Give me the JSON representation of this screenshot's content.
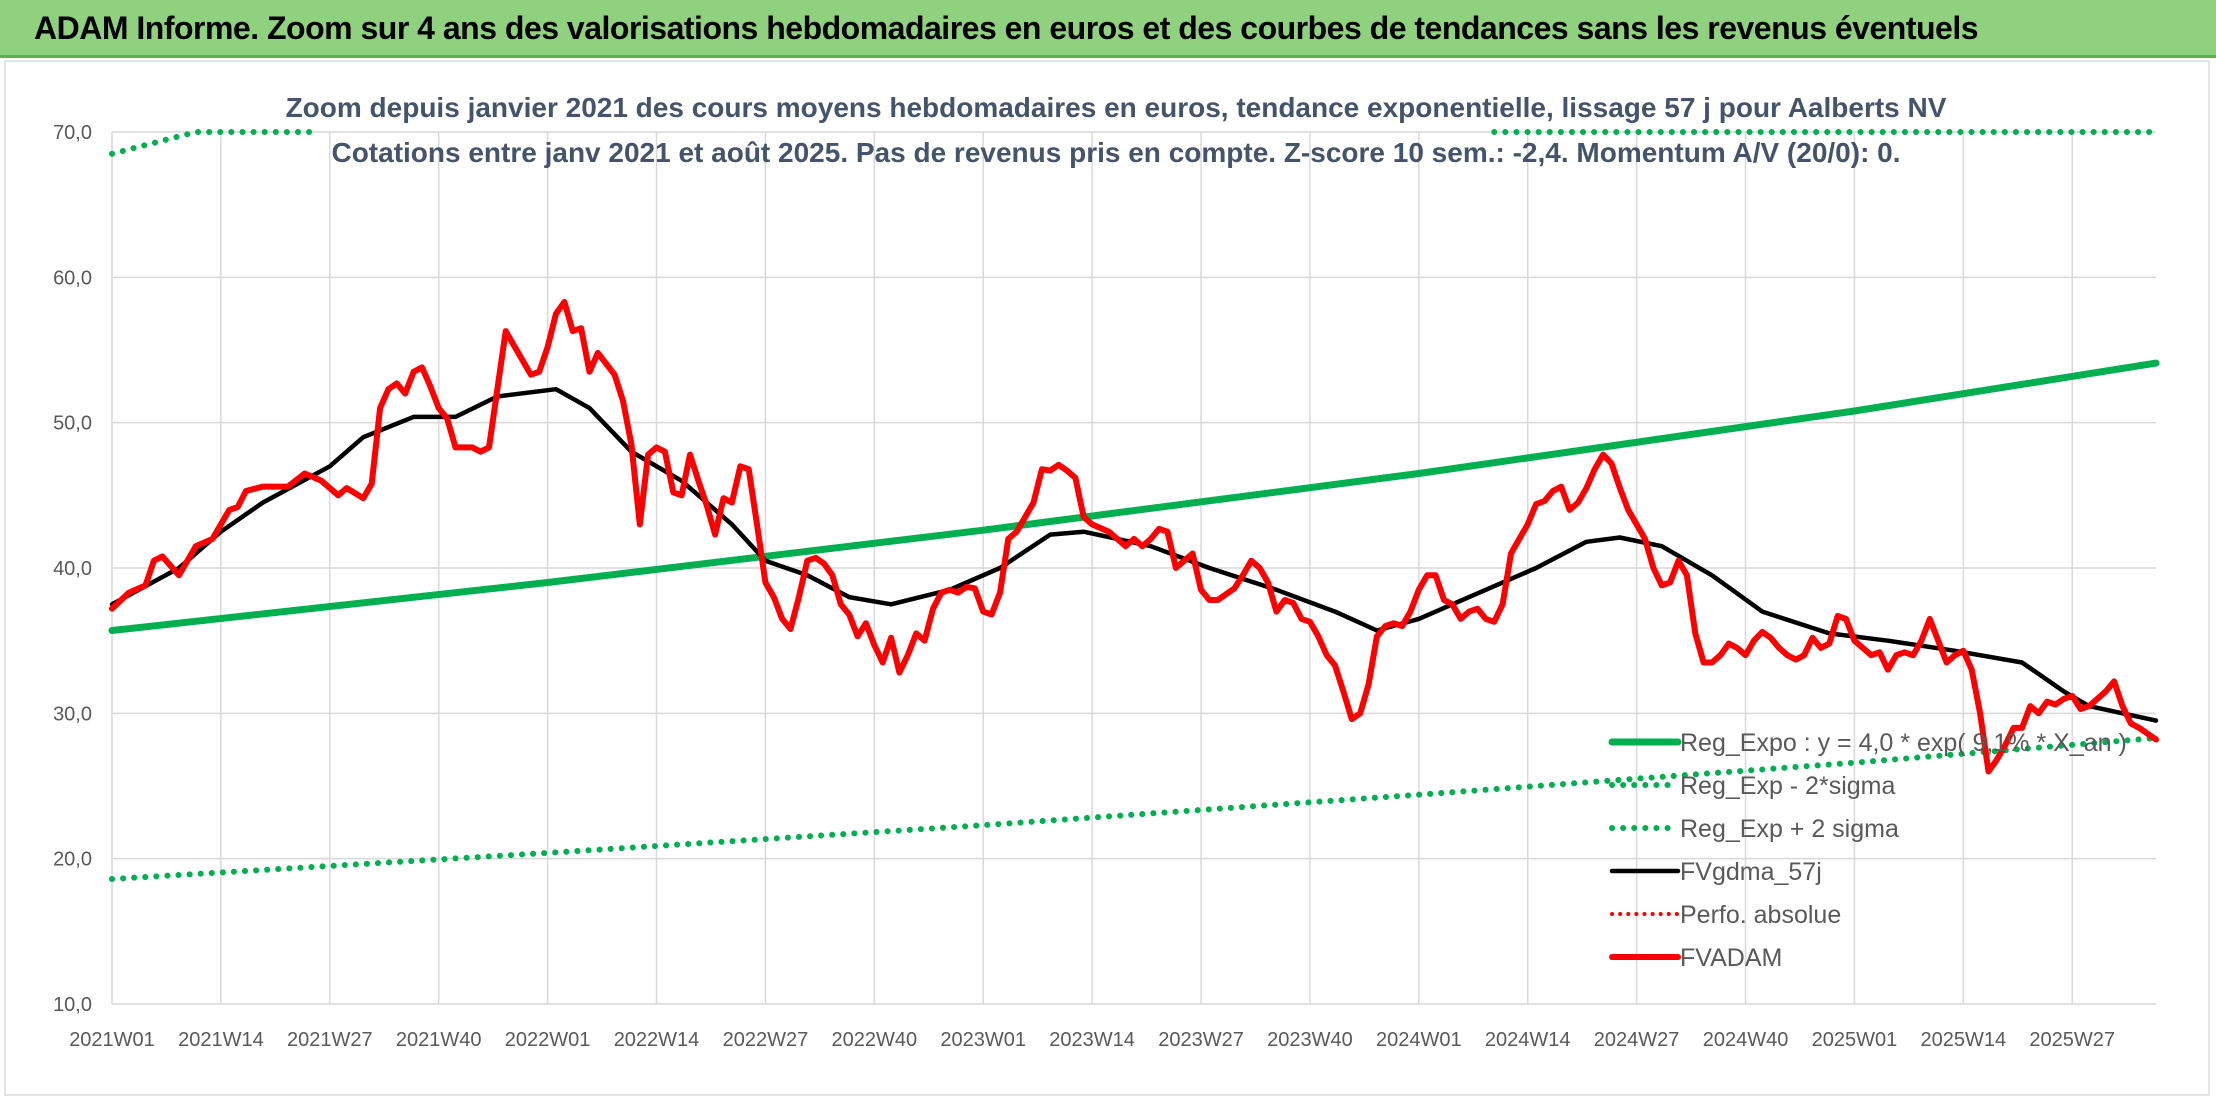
{
  "header": {
    "title": "ADAM Informe. Zoom sur 4 ans des valorisations hebdomadaires en euros et des courbes de tendances sans les revenus éventuels"
  },
  "chart_data": {
    "type": "line",
    "subtitle_line1": "Zoom depuis janvier 2021 des cours moyens hebdomadaires en euros, tendance exponentielle, lissage 57 j pour Aalberts NV",
    "subtitle_line2": "Cotations entre janv 2021 et août 2025. Pas de revenus pris en compte. Z-score 10 sem.: -2,4. Momentum A/V (20/0): 0.",
    "ylim": [
      10,
      70
    ],
    "yticks": [
      "10,0",
      "20,0",
      "30,0",
      "40,0",
      "50,0",
      "60,0",
      "70,0"
    ],
    "xticks": [
      "2021W01",
      "2021W14",
      "2021W27",
      "2021W40",
      "2022W01",
      "2022W14",
      "2022W27",
      "2022W40",
      "2023W01",
      "2023W14",
      "2023W27",
      "2023W40",
      "2024W01",
      "2024W14",
      "2024W27",
      "2024W40",
      "2025W01",
      "2025W14",
      "2025W27"
    ],
    "n_weeks": 245,
    "grid": true,
    "legend_position": "bottom-right",
    "colors": {
      "reg": "#00b050",
      "fv": "#000000",
      "perf": "#ff0000",
      "price": "#ff0000",
      "grid": "#d9d9d9"
    },
    "series": [
      {
        "name": "Reg_Expo : y = 4,0 * exp( 9,1% * X_an )",
        "style": "solid-green",
        "points": [
          [
            0,
            35.7
          ],
          [
            52,
            39.0
          ],
          [
            104,
            42.6
          ],
          [
            156,
            46.5
          ],
          [
            208,
            50.8
          ],
          [
            244,
            54.1
          ]
        ]
      },
      {
        "name": "Reg_Exp - 2*sigma",
        "style": "dotted-green",
        "points": [
          [
            0,
            18.6
          ],
          [
            52,
            20.4
          ],
          [
            104,
            22.3
          ],
          [
            156,
            24.4
          ],
          [
            208,
            26.6
          ],
          [
            244,
            28.3
          ]
        ]
      },
      {
        "name": "Reg_Exp + 2 sigma",
        "style": "dotted-green",
        "points": [
          [
            0,
            68.5
          ],
          [
            10,
            70.0
          ],
          [
            24,
            70.0
          ],
          [
            24,
            null
          ],
          [
            165,
            null
          ],
          [
            165,
            70.0
          ],
          [
            244,
            70.0
          ]
        ]
      },
      {
        "name": "FVgdma_57j",
        "style": "solid-black",
        "points": [
          [
            0,
            37.5
          ],
          [
            8,
            40.0
          ],
          [
            13,
            42.5
          ],
          [
            18,
            44.5
          ],
          [
            26,
            47.0
          ],
          [
            30,
            49.0
          ],
          [
            36,
            50.4
          ],
          [
            41,
            50.4
          ],
          [
            46,
            51.8
          ],
          [
            53,
            52.3
          ],
          [
            57,
            51.0
          ],
          [
            62,
            48.0
          ],
          [
            68,
            46.0
          ],
          [
            74,
            43.0
          ],
          [
            78,
            40.5
          ],
          [
            83,
            39.5
          ],
          [
            88,
            38.0
          ],
          [
            93,
            37.5
          ],
          [
            100,
            38.5
          ],
          [
            106,
            40.0
          ],
          [
            112,
            42.3
          ],
          [
            116,
            42.5
          ],
          [
            124,
            41.5
          ],
          [
            131,
            40.0
          ],
          [
            139,
            38.5
          ],
          [
            146,
            37.0
          ],
          [
            151,
            35.7
          ],
          [
            156,
            36.5
          ],
          [
            164,
            38.5
          ],
          [
            170,
            40.0
          ],
          [
            176,
            41.8
          ],
          [
            180,
            42.1
          ],
          [
            185,
            41.5
          ],
          [
            191,
            39.5
          ],
          [
            197,
            37.0
          ],
          [
            205,
            35.5
          ],
          [
            212,
            35.0
          ],
          [
            220,
            34.3
          ],
          [
            228,
            33.5
          ],
          [
            233,
            31.5
          ],
          [
            236,
            30.5
          ],
          [
            244,
            29.5
          ]
        ]
      },
      {
        "name": "Perfo. absolue",
        "style": "dotted-red",
        "points": []
      },
      {
        "name": "FVADAM",
        "style": "solid-red",
        "points": [
          [
            0,
            37.2
          ],
          [
            2,
            38.3
          ],
          [
            4,
            38.8
          ],
          [
            5,
            40.5
          ],
          [
            6,
            40.8
          ],
          [
            8,
            39.5
          ],
          [
            10,
            41.5
          ],
          [
            12,
            42.0
          ],
          [
            14,
            44.0
          ],
          [
            15,
            44.2
          ],
          [
            16,
            45.3
          ],
          [
            18,
            45.6
          ],
          [
            21,
            45.6
          ],
          [
            23,
            46.5
          ],
          [
            25,
            46.0
          ],
          [
            27,
            45.0
          ],
          [
            28,
            45.5
          ],
          [
            30,
            44.8
          ],
          [
            31,
            45.8
          ],
          [
            32,
            51.0
          ],
          [
            33,
            52.3
          ],
          [
            34,
            52.7
          ],
          [
            35,
            52.0
          ],
          [
            36,
            53.5
          ],
          [
            37,
            53.8
          ],
          [
            38,
            52.5
          ],
          [
            39,
            51.0
          ],
          [
            40,
            50.3
          ],
          [
            41,
            48.3
          ],
          [
            43,
            48.3
          ],
          [
            44,
            48.0
          ],
          [
            45,
            48.3
          ],
          [
            47,
            56.3
          ],
          [
            49,
            54.3
          ],
          [
            50,
            53.3
          ],
          [
            51,
            53.5
          ],
          [
            52,
            55.2
          ],
          [
            53,
            57.5
          ],
          [
            54,
            58.3
          ],
          [
            55,
            56.3
          ],
          [
            56,
            56.5
          ],
          [
            57,
            53.5
          ],
          [
            58,
            54.8
          ],
          [
            60,
            53.3
          ],
          [
            61,
            51.5
          ],
          [
            62,
            48.5
          ],
          [
            63,
            43.0
          ],
          [
            64,
            47.8
          ],
          [
            65,
            48.3
          ],
          [
            66,
            48.0
          ],
          [
            67,
            45.2
          ],
          [
            68,
            45.0
          ],
          [
            69,
            47.8
          ],
          [
            70,
            46.0
          ],
          [
            71,
            44.3
          ],
          [
            72,
            42.3
          ],
          [
            73,
            44.8
          ],
          [
            74,
            44.5
          ],
          [
            75,
            47.0
          ],
          [
            76,
            46.8
          ],
          [
            77,
            43.0
          ],
          [
            78,
            39.0
          ],
          [
            79,
            38.0
          ],
          [
            80,
            36.5
          ],
          [
            81,
            35.8
          ],
          [
            82,
            38.0
          ],
          [
            83,
            40.5
          ],
          [
            84,
            40.7
          ],
          [
            85,
            40.3
          ],
          [
            86,
            39.5
          ],
          [
            87,
            37.5
          ],
          [
            88,
            36.8
          ],
          [
            89,
            35.3
          ],
          [
            90,
            36.2
          ],
          [
            91,
            34.7
          ],
          [
            92,
            33.5
          ],
          [
            93,
            35.2
          ],
          [
            94,
            32.8
          ],
          [
            95,
            34.0
          ],
          [
            96,
            35.5
          ],
          [
            97,
            35.0
          ],
          [
            98,
            37.2
          ],
          [
            99,
            38.3
          ],
          [
            100,
            38.5
          ],
          [
            101,
            38.3
          ],
          [
            102,
            38.7
          ],
          [
            103,
            38.6
          ],
          [
            104,
            37.0
          ],
          [
            105,
            36.8
          ],
          [
            106,
            38.3
          ],
          [
            107,
            42.0
          ],
          [
            108,
            42.5
          ],
          [
            109,
            43.5
          ],
          [
            110,
            44.5
          ],
          [
            111,
            46.8
          ],
          [
            112,
            46.7
          ],
          [
            113,
            47.1
          ],
          [
            114,
            46.7
          ],
          [
            115,
            46.2
          ],
          [
            116,
            43.5
          ],
          [
            117,
            43.0
          ],
          [
            119,
            42.5
          ],
          [
            120,
            42.0
          ],
          [
            121,
            41.5
          ],
          [
            122,
            42.0
          ],
          [
            123,
            41.5
          ],
          [
            124,
            42.0
          ],
          [
            125,
            42.7
          ],
          [
            126,
            42.5
          ],
          [
            127,
            40.0
          ],
          [
            128,
            40.5
          ],
          [
            129,
            41.0
          ],
          [
            130,
            38.5
          ],
          [
            131,
            37.8
          ],
          [
            132,
            37.8
          ],
          [
            133,
            38.2
          ],
          [
            134,
            38.6
          ],
          [
            135,
            39.5
          ],
          [
            136,
            40.5
          ],
          [
            137,
            40.0
          ],
          [
            138,
            39.0
          ],
          [
            139,
            37.0
          ],
          [
            140,
            37.8
          ],
          [
            141,
            37.6
          ],
          [
            142,
            36.5
          ],
          [
            143,
            36.3
          ],
          [
            144,
            35.3
          ],
          [
            145,
            34.0
          ],
          [
            146,
            33.3
          ],
          [
            147,
            31.5
          ],
          [
            148,
            29.6
          ],
          [
            149,
            30.0
          ],
          [
            150,
            32.0
          ],
          [
            151,
            35.3
          ],
          [
            152,
            36.0
          ],
          [
            153,
            36.2
          ],
          [
            154,
            36.0
          ],
          [
            155,
            37.0
          ],
          [
            156,
            38.5
          ],
          [
            157,
            39.5
          ],
          [
            158,
            39.5
          ],
          [
            159,
            37.8
          ],
          [
            160,
            37.5
          ],
          [
            161,
            36.5
          ],
          [
            162,
            37.0
          ],
          [
            163,
            37.2
          ],
          [
            164,
            36.5
          ],
          [
            165,
            36.3
          ],
          [
            166,
            37.5
          ],
          [
            167,
            41.0
          ],
          [
            168,
            42.0
          ],
          [
            169,
            43.0
          ],
          [
            170,
            44.4
          ],
          [
            171,
            44.6
          ],
          [
            172,
            45.3
          ],
          [
            173,
            45.6
          ],
          [
            174,
            44.0
          ],
          [
            175,
            44.5
          ],
          [
            176,
            45.5
          ],
          [
            177,
            46.8
          ],
          [
            178,
            47.8
          ],
          [
            179,
            47.2
          ],
          [
            180,
            45.5
          ],
          [
            181,
            44.0
          ],
          [
            182,
            43.0
          ],
          [
            183,
            42.0
          ],
          [
            184,
            40.0
          ],
          [
            185,
            38.8
          ],
          [
            186,
            39.0
          ],
          [
            187,
            40.5
          ],
          [
            188,
            39.5
          ],
          [
            189,
            35.5
          ],
          [
            190,
            33.5
          ],
          [
            191,
            33.5
          ],
          [
            192,
            34.0
          ],
          [
            193,
            34.8
          ],
          [
            194,
            34.5
          ],
          [
            195,
            34.0
          ],
          [
            196,
            35.0
          ],
          [
            197,
            35.6
          ],
          [
            198,
            35.2
          ],
          [
            199,
            34.5
          ],
          [
            200,
            34.0
          ],
          [
            201,
            33.7
          ],
          [
            202,
            34.0
          ],
          [
            203,
            35.2
          ],
          [
            204,
            34.5
          ],
          [
            205,
            34.8
          ],
          [
            206,
            36.7
          ],
          [
            207,
            36.5
          ],
          [
            208,
            35.0
          ],
          [
            209,
            34.5
          ],
          [
            210,
            34.0
          ],
          [
            211,
            34.2
          ],
          [
            212,
            33.0
          ],
          [
            213,
            34.0
          ],
          [
            214,
            34.2
          ],
          [
            215,
            34.0
          ],
          [
            216,
            35.0
          ],
          [
            217,
            36.5
          ],
          [
            218,
            35.0
          ],
          [
            219,
            33.5
          ],
          [
            220,
            34.0
          ],
          [
            221,
            34.3
          ],
          [
            222,
            33.0
          ],
          [
            223,
            30.0
          ],
          [
            224,
            26.0
          ],
          [
            225,
            26.8
          ],
          [
            226,
            27.8
          ],
          [
            227,
            29.0
          ],
          [
            228,
            29.0
          ],
          [
            229,
            30.5
          ],
          [
            230,
            30.0
          ],
          [
            231,
            30.8
          ],
          [
            232,
            30.6
          ],
          [
            233,
            31.0
          ],
          [
            234,
            31.2
          ],
          [
            235,
            30.3
          ],
          [
            236,
            30.5
          ],
          [
            237,
            31.0
          ],
          [
            238,
            31.5
          ],
          [
            239,
            32.2
          ],
          [
            240,
            30.5
          ],
          [
            241,
            29.3
          ],
          [
            242,
            29.0
          ],
          [
            243,
            28.6
          ],
          [
            244,
            28.2
          ]
        ]
      }
    ]
  }
}
